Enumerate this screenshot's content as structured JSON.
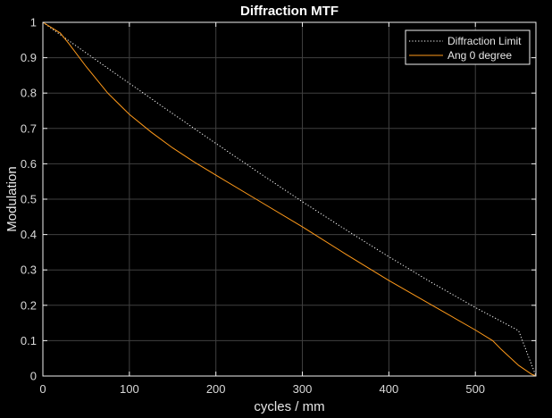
{
  "chart_data": {
    "type": "line",
    "title": "Diffraction MTF",
    "xlabel": "cycles / mm",
    "ylabel": "Modulation",
    "xlim": [
      0,
      570
    ],
    "ylim": [
      0,
      1
    ],
    "xticks": [
      0,
      100,
      200,
      300,
      400,
      500
    ],
    "yticks": [
      0,
      0.1,
      0.2,
      0.3,
      0.4,
      0.5,
      0.6,
      0.7,
      0.8,
      0.9,
      1
    ],
    "xtick_labels": [
      "0",
      "100",
      "200",
      "300",
      "400",
      "500"
    ],
    "ytick_labels": [
      "0",
      "0.1",
      "0.2",
      "0.3",
      "0.4",
      "0.5",
      "0.6",
      "0.7",
      "0.8",
      "0.9",
      "1"
    ],
    "grid": true,
    "legend_position": "top-right",
    "background": "#000000",
    "colors": {
      "axes": "#f0f0f0",
      "grid": "#404040"
    },
    "series": [
      {
        "name": "Diffraction Limit",
        "color": "#ffffff",
        "style": "dotted",
        "x": [
          0,
          50,
          100,
          150,
          200,
          250,
          300,
          350,
          400,
          450,
          500,
          550,
          570
        ],
        "y": [
          1.0,
          0.9135,
          0.8274,
          0.7419,
          0.6575,
          0.5744,
          0.493,
          0.4138,
          0.3371,
          0.2635,
          0.1936,
          0.1284,
          0.0
        ]
      },
      {
        "name": "Ang 0 degree",
        "color": "#ff9a1a",
        "style": "solid",
        "x": [
          0,
          10,
          20,
          30,
          50,
          75,
          100,
          125,
          150,
          175,
          200,
          250,
          300,
          350,
          400,
          450,
          500,
          520,
          530,
          550,
          565,
          570
        ],
        "y": [
          1.0,
          0.985,
          0.97,
          0.94,
          0.875,
          0.8,
          0.74,
          0.69,
          0.645,
          0.605,
          0.568,
          0.495,
          0.422,
          0.345,
          0.27,
          0.2,
          0.13,
          0.1,
          0.075,
          0.03,
          0.005,
          0.0
        ]
      }
    ]
  }
}
